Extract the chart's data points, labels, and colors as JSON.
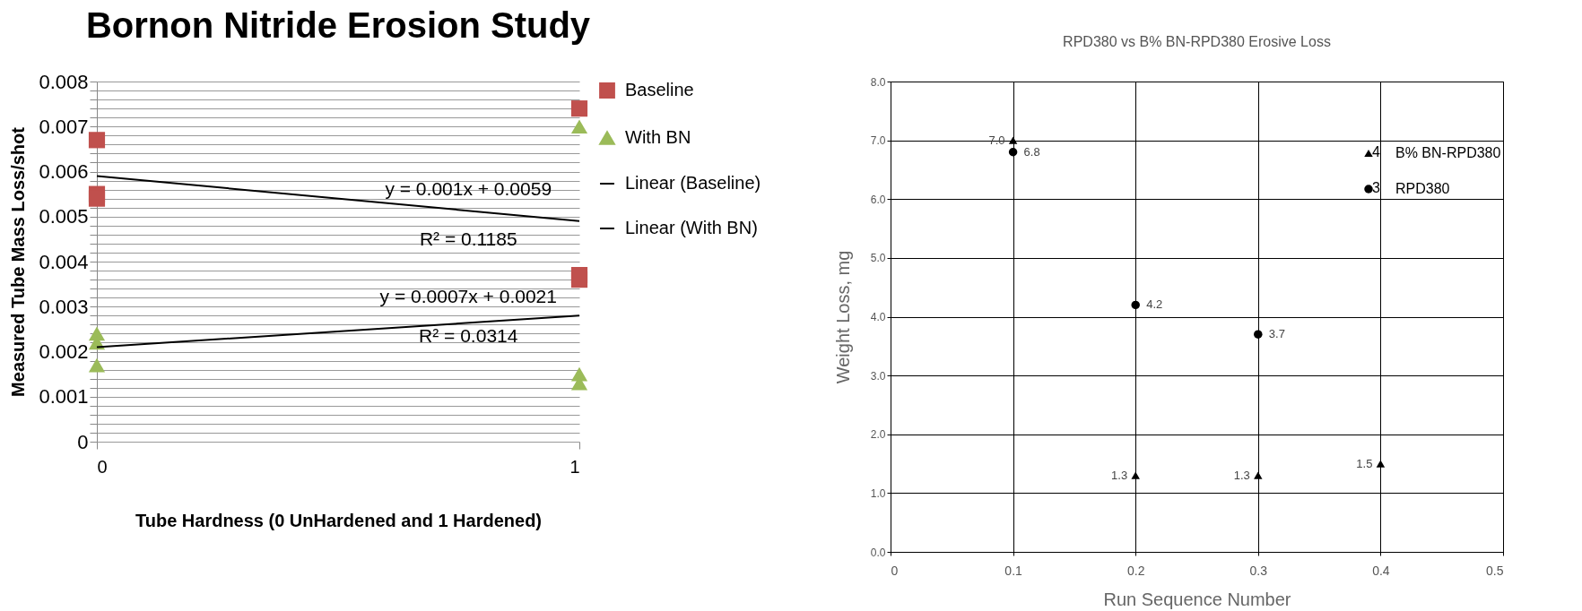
{
  "chart_data": [
    {
      "type": "scatter",
      "title": "Bornon Nitride Erosion Study",
      "xlabel": "Tube Hardness (0 UnHardened and 1 Hardened)",
      "ylabel": "Measured Tube Mass Loss/shot",
      "xlim": [
        0,
        1
      ],
      "xticks": [
        0,
        1
      ],
      "ylim": [
        0,
        0.008
      ],
      "yticks": [
        0,
        {
          "value": 0.0002,
          "label": null
        },
        {
          "value": 0.0004,
          "label": null
        },
        {
          "value": 0.0006,
          "label": null
        },
        {
          "value": 0.0008,
          "label": null
        },
        0.001,
        {
          "value": 0.0012,
          "label": null
        },
        {
          "value": 0.0014,
          "label": null
        },
        {
          "value": 0.0016,
          "label": null
        },
        {
          "value": 0.0018,
          "label": null
        },
        0.002,
        {
          "value": 0.0022,
          "label": null
        },
        {
          "value": 0.0024,
          "label": null
        },
        {
          "value": 0.0026,
          "label": null
        },
        {
          "value": 0.0028,
          "label": null
        },
        0.003,
        {
          "value": 0.0032,
          "label": null
        },
        {
          "value": 0.0034,
          "label": null
        },
        {
          "value": 0.0036,
          "label": null
        },
        {
          "value": 0.0038,
          "label": null
        },
        0.004,
        {
          "value": 0.0042,
          "label": null
        },
        {
          "value": 0.0044,
          "label": null
        },
        {
          "value": 0.0046,
          "label": null
        },
        {
          "value": 0.0048,
          "label": null
        },
        0.005,
        {
          "value": 0.0052,
          "label": null
        },
        {
          "value": 0.0054,
          "label": null
        },
        {
          "value": 0.0056,
          "label": null
        },
        {
          "value": 0.0058,
          "label": null
        },
        0.006,
        {
          "value": 0.0062,
          "label": null
        },
        {
          "value": 0.0064,
          "label": null
        },
        {
          "value": 0.0066,
          "label": null
        },
        {
          "value": 0.0068,
          "label": null
        },
        0.007,
        {
          "value": 0.0072,
          "label": null
        },
        {
          "value": 0.0074,
          "label": null
        },
        {
          "value": 0.0076,
          "label": null
        },
        {
          "value": 0.0078,
          "label": null
        },
        0.008
      ],
      "grid": "y",
      "legend": "right",
      "series": [
        {
          "name": "Baseline",
          "marker": "square",
          "color": "#c0504d",
          "x": [
            0,
            0,
            0,
            1,
            1,
            1
          ],
          "values": [
            0.0067,
            0.0055,
            0.0054,
            0.0074,
            0.0037,
            0.0036
          ]
        },
        {
          "name": "With BN",
          "marker": "triangle",
          "color": "#9bbb59",
          "x": [
            0,
            0,
            0,
            1,
            1,
            1
          ],
          "values": [
            0.0024,
            0.0022,
            0.0017,
            0.007,
            0.0015,
            0.0013
          ]
        },
        {
          "name": "Linear (Baseline)",
          "type": "line",
          "color": "#000000",
          "x": [
            0,
            1
          ],
          "values": [
            0.0059,
            0.0049
          ]
        },
        {
          "name": "Linear (With BN)",
          "type": "line",
          "color": "#000000",
          "x": [
            0,
            1
          ],
          "values": [
            0.0021,
            0.0028
          ]
        }
      ],
      "annotations": [
        "y =  0.001x + 0.0059",
        "R² = 0.1185",
        "y = 0.0007x + 0.0021",
        "R² = 0.0314"
      ]
    },
    {
      "type": "scatter",
      "title": "RPD380 vs B% BN-RPD380 Erosive Loss",
      "xlabel": "Run  Sequence Number",
      "ylabel": "Weight Loss, mg",
      "xlim": [
        0,
        0.5
      ],
      "xticks": [
        0,
        0.1,
        0.2,
        0.3,
        0.4,
        0.5
      ],
      "ylim": [
        0,
        8
      ],
      "yticks": [
        {
          "value": 0,
          "label": "0.0"
        },
        {
          "value": 1,
          "label": "1.0"
        },
        {
          "value": 2,
          "label": "2.0"
        },
        {
          "value": 3,
          "label": "3.0"
        },
        {
          "value": 4,
          "label": "4.0"
        },
        {
          "value": 5,
          "label": "5.0"
        },
        {
          "value": 6,
          "label": "6.0"
        },
        {
          "value": 7,
          "label": "7.0"
        },
        {
          "value": 8,
          "label": "8.0"
        }
      ],
      "grid": true,
      "legend": "top right",
      "series": [
        {
          "name": "B% BN-RPD380",
          "marker": "triangle",
          "color": "#000000",
          "x": [
            0.1,
            0.2,
            0.3,
            0.4
          ],
          "values": [
            7.0,
            1.3,
            1.3,
            1.5
          ],
          "value_labels": [
            "7.0",
            "1.3",
            "1.3",
            "1.5"
          ]
        },
        {
          "name": "RPD380",
          "marker": "circle",
          "color": "#000000",
          "x": [
            0.1,
            0.2,
            0.3
          ],
          "values": [
            6.8,
            4.2,
            3.7
          ],
          "value_labels": [
            "6.8",
            "4.2",
            "3.7"
          ]
        }
      ],
      "annotations": [
        "4",
        "3"
      ]
    }
  ]
}
